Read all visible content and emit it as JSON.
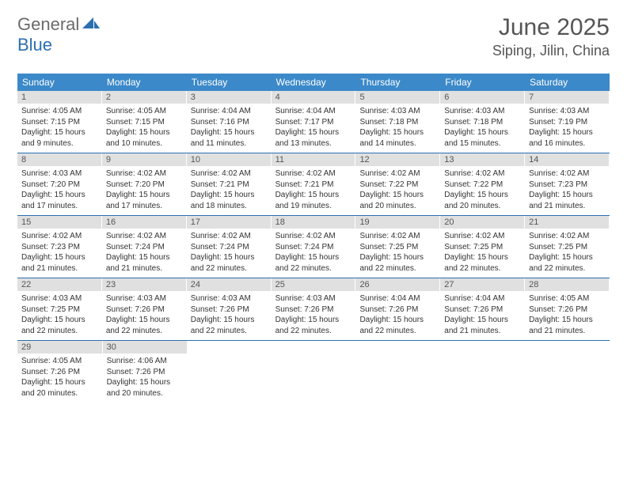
{
  "logo": {
    "text1": "General",
    "text2": "Blue"
  },
  "title": "June 2025",
  "location": "Siping, Jilin, China",
  "colors": {
    "header_bg": "#3b89c9",
    "header_text": "#ffffff",
    "daynum_bg": "#e0e0e0",
    "daynum_text": "#555555",
    "row_border": "#2b6fb0",
    "body_text": "#333333",
    "title_text": "#555555",
    "logo_gray": "#6b6b6b",
    "logo_blue": "#2b6fb0"
  },
  "weekdays": [
    "Sunday",
    "Monday",
    "Tuesday",
    "Wednesday",
    "Thursday",
    "Friday",
    "Saturday"
  ],
  "weeks": [
    [
      {
        "n": "1",
        "sr": "Sunrise: 4:05 AM",
        "ss": "Sunset: 7:15 PM",
        "d1": "Daylight: 15 hours",
        "d2": "and 9 minutes."
      },
      {
        "n": "2",
        "sr": "Sunrise: 4:05 AM",
        "ss": "Sunset: 7:15 PM",
        "d1": "Daylight: 15 hours",
        "d2": "and 10 minutes."
      },
      {
        "n": "3",
        "sr": "Sunrise: 4:04 AM",
        "ss": "Sunset: 7:16 PM",
        "d1": "Daylight: 15 hours",
        "d2": "and 11 minutes."
      },
      {
        "n": "4",
        "sr": "Sunrise: 4:04 AM",
        "ss": "Sunset: 7:17 PM",
        "d1": "Daylight: 15 hours",
        "d2": "and 13 minutes."
      },
      {
        "n": "5",
        "sr": "Sunrise: 4:03 AM",
        "ss": "Sunset: 7:18 PM",
        "d1": "Daylight: 15 hours",
        "d2": "and 14 minutes."
      },
      {
        "n": "6",
        "sr": "Sunrise: 4:03 AM",
        "ss": "Sunset: 7:18 PM",
        "d1": "Daylight: 15 hours",
        "d2": "and 15 minutes."
      },
      {
        "n": "7",
        "sr": "Sunrise: 4:03 AM",
        "ss": "Sunset: 7:19 PM",
        "d1": "Daylight: 15 hours",
        "d2": "and 16 minutes."
      }
    ],
    [
      {
        "n": "8",
        "sr": "Sunrise: 4:03 AM",
        "ss": "Sunset: 7:20 PM",
        "d1": "Daylight: 15 hours",
        "d2": "and 17 minutes."
      },
      {
        "n": "9",
        "sr": "Sunrise: 4:02 AM",
        "ss": "Sunset: 7:20 PM",
        "d1": "Daylight: 15 hours",
        "d2": "and 17 minutes."
      },
      {
        "n": "10",
        "sr": "Sunrise: 4:02 AM",
        "ss": "Sunset: 7:21 PM",
        "d1": "Daylight: 15 hours",
        "d2": "and 18 minutes."
      },
      {
        "n": "11",
        "sr": "Sunrise: 4:02 AM",
        "ss": "Sunset: 7:21 PM",
        "d1": "Daylight: 15 hours",
        "d2": "and 19 minutes."
      },
      {
        "n": "12",
        "sr": "Sunrise: 4:02 AM",
        "ss": "Sunset: 7:22 PM",
        "d1": "Daylight: 15 hours",
        "d2": "and 20 minutes."
      },
      {
        "n": "13",
        "sr": "Sunrise: 4:02 AM",
        "ss": "Sunset: 7:22 PM",
        "d1": "Daylight: 15 hours",
        "d2": "and 20 minutes."
      },
      {
        "n": "14",
        "sr": "Sunrise: 4:02 AM",
        "ss": "Sunset: 7:23 PM",
        "d1": "Daylight: 15 hours",
        "d2": "and 21 minutes."
      }
    ],
    [
      {
        "n": "15",
        "sr": "Sunrise: 4:02 AM",
        "ss": "Sunset: 7:23 PM",
        "d1": "Daylight: 15 hours",
        "d2": "and 21 minutes."
      },
      {
        "n": "16",
        "sr": "Sunrise: 4:02 AM",
        "ss": "Sunset: 7:24 PM",
        "d1": "Daylight: 15 hours",
        "d2": "and 21 minutes."
      },
      {
        "n": "17",
        "sr": "Sunrise: 4:02 AM",
        "ss": "Sunset: 7:24 PM",
        "d1": "Daylight: 15 hours",
        "d2": "and 22 minutes."
      },
      {
        "n": "18",
        "sr": "Sunrise: 4:02 AM",
        "ss": "Sunset: 7:24 PM",
        "d1": "Daylight: 15 hours",
        "d2": "and 22 minutes."
      },
      {
        "n": "19",
        "sr": "Sunrise: 4:02 AM",
        "ss": "Sunset: 7:25 PM",
        "d1": "Daylight: 15 hours",
        "d2": "and 22 minutes."
      },
      {
        "n": "20",
        "sr": "Sunrise: 4:02 AM",
        "ss": "Sunset: 7:25 PM",
        "d1": "Daylight: 15 hours",
        "d2": "and 22 minutes."
      },
      {
        "n": "21",
        "sr": "Sunrise: 4:02 AM",
        "ss": "Sunset: 7:25 PM",
        "d1": "Daylight: 15 hours",
        "d2": "and 22 minutes."
      }
    ],
    [
      {
        "n": "22",
        "sr": "Sunrise: 4:03 AM",
        "ss": "Sunset: 7:25 PM",
        "d1": "Daylight: 15 hours",
        "d2": "and 22 minutes."
      },
      {
        "n": "23",
        "sr": "Sunrise: 4:03 AM",
        "ss": "Sunset: 7:26 PM",
        "d1": "Daylight: 15 hours",
        "d2": "and 22 minutes."
      },
      {
        "n": "24",
        "sr": "Sunrise: 4:03 AM",
        "ss": "Sunset: 7:26 PM",
        "d1": "Daylight: 15 hours",
        "d2": "and 22 minutes."
      },
      {
        "n": "25",
        "sr": "Sunrise: 4:03 AM",
        "ss": "Sunset: 7:26 PM",
        "d1": "Daylight: 15 hours",
        "d2": "and 22 minutes."
      },
      {
        "n": "26",
        "sr": "Sunrise: 4:04 AM",
        "ss": "Sunset: 7:26 PM",
        "d1": "Daylight: 15 hours",
        "d2": "and 22 minutes."
      },
      {
        "n": "27",
        "sr": "Sunrise: 4:04 AM",
        "ss": "Sunset: 7:26 PM",
        "d1": "Daylight: 15 hours",
        "d2": "and 21 minutes."
      },
      {
        "n": "28",
        "sr": "Sunrise: 4:05 AM",
        "ss": "Sunset: 7:26 PM",
        "d1": "Daylight: 15 hours",
        "d2": "and 21 minutes."
      }
    ],
    [
      {
        "n": "29",
        "sr": "Sunrise: 4:05 AM",
        "ss": "Sunset: 7:26 PM",
        "d1": "Daylight: 15 hours",
        "d2": "and 20 minutes."
      },
      {
        "n": "30",
        "sr": "Sunrise: 4:06 AM",
        "ss": "Sunset: 7:26 PM",
        "d1": "Daylight: 15 hours",
        "d2": "and 20 minutes."
      },
      null,
      null,
      null,
      null,
      null
    ]
  ]
}
